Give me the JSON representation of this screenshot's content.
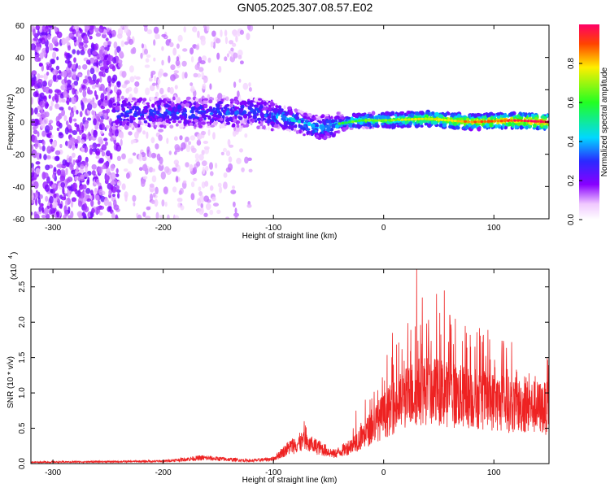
{
  "title": "GN05.2025.307.08.57.E02",
  "chart_data": [
    {
      "type": "heatmap",
      "title": "GN05.2025.307.08.57.E02",
      "xlabel": "Height of straight line (km)",
      "ylabel": "Frequency (Hz)",
      "xlim": [
        -320,
        150
      ],
      "ylim": [
        -60,
        60
      ],
      "xticks": [
        -300,
        -200,
        -100,
        0,
        100
      ],
      "xtick_labels": [
        "-300",
        "-200",
        "-100",
        "0",
        "100"
      ],
      "yticks": [
        -60,
        -40,
        -20,
        0,
        20,
        40,
        60
      ],
      "ytick_labels": [
        "-60",
        "-40",
        "-20",
        "0",
        "20",
        "40",
        "60"
      ],
      "band_center_hz": [
        {
          "x": -240,
          "y": 5
        },
        {
          "x": -200,
          "y": 6
        },
        {
          "x": -150,
          "y": 6
        },
        {
          "x": -120,
          "y": 6
        },
        {
          "x": -100,
          "y": 4
        },
        {
          "x": -80,
          "y": 1
        },
        {
          "x": -60,
          "y": -4
        },
        {
          "x": -40,
          "y": -1
        },
        {
          "x": -20,
          "y": 1
        },
        {
          "x": 0,
          "y": 1
        },
        {
          "x": 40,
          "y": 2
        },
        {
          "x": 80,
          "y": 0
        },
        {
          "x": 120,
          "y": 1
        },
        {
          "x": 150,
          "y": 0
        }
      ],
      "colorbar": {
        "label": "Normalized spectral amplitude",
        "range": [
          0,
          1
        ],
        "ticks": [
          0.0,
          0.2,
          0.4,
          0.6,
          0.8
        ],
        "tick_labels": [
          "0.0",
          "0.2",
          "0.4",
          "0.6",
          "0.8"
        ]
      }
    },
    {
      "type": "line",
      "xlabel": "Height of straight line (km)",
      "ylabel": "SNR (10 * v/v)",
      "y_multiplier_label": "(x10",
      "y_multiplier_exponent": "4",
      "xlim": [
        -320,
        150
      ],
      "ylim": [
        0,
        2.75
      ],
      "xticks": [
        -300,
        -200,
        -100,
        0,
        100
      ],
      "xtick_labels": [
        "-300",
        "-200",
        "-100",
        "0",
        "100"
      ],
      "yticks": [
        0.0,
        0.5,
        1.0,
        1.5,
        2.0,
        2.5
      ],
      "ytick_labels": [
        "0.0",
        "0.5",
        "1.0",
        "1.5",
        "2.0",
        "2.5"
      ],
      "series": [
        {
          "name": "SNR",
          "color": "#ee2222",
          "envelope": [
            {
              "x": -320,
              "y": 0.03
            },
            {
              "x": -250,
              "y": 0.04
            },
            {
              "x": -200,
              "y": 0.05
            },
            {
              "x": -165,
              "y": 0.12
            },
            {
              "x": -120,
              "y": 0.06
            },
            {
              "x": -100,
              "y": 0.1
            },
            {
              "x": -85,
              "y": 0.35
            },
            {
              "x": -75,
              "y": 0.45
            },
            {
              "x": -60,
              "y": 0.35
            },
            {
              "x": -45,
              "y": 0.2
            },
            {
              "x": -35,
              "y": 0.3
            },
            {
              "x": -20,
              "y": 0.55
            },
            {
              "x": -5,
              "y": 0.9
            },
            {
              "x": 10,
              "y": 1.2
            },
            {
              "x": 25,
              "y": 1.45
            },
            {
              "x": 35,
              "y": 1.55
            },
            {
              "x": 50,
              "y": 1.5
            },
            {
              "x": 70,
              "y": 1.4
            },
            {
              "x": 90,
              "y": 1.35
            },
            {
              "x": 110,
              "y": 1.25
            },
            {
              "x": 130,
              "y": 1.2
            },
            {
              "x": 150,
              "y": 1.15
            }
          ],
          "peaks": [
            {
              "x": 30,
              "y": 2.75
            },
            {
              "x": 35,
              "y": 2.35
            },
            {
              "x": 48,
              "y": 2.4
            },
            {
              "x": 55,
              "y": 2.45
            },
            {
              "x": 60,
              "y": 2.1
            },
            {
              "x": 65,
              "y": 2.05
            },
            {
              "x": 75,
              "y": 1.85
            },
            {
              "x": 8,
              "y": 1.85
            },
            {
              "x": -72,
              "y": 0.6
            },
            {
              "x": -25,
              "y": 0.75
            }
          ]
        }
      ]
    }
  ]
}
